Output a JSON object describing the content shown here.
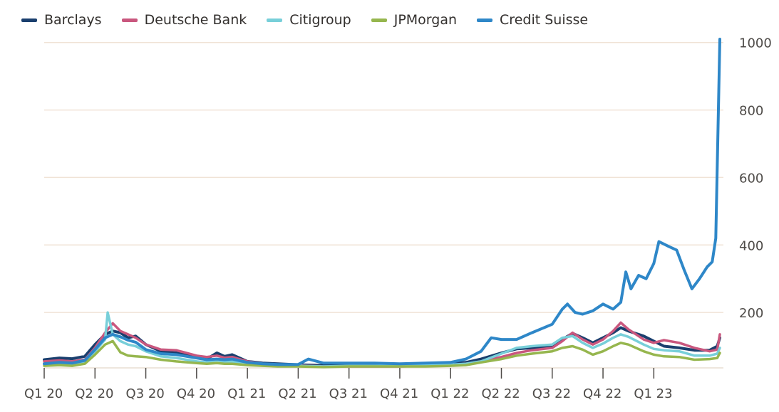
{
  "chart_data": {
    "type": "line",
    "title": "",
    "xlabel": "",
    "ylabel": "",
    "x_tick_labels": [
      "Q1 20",
      "Q2 20",
      "Q3 20",
      "Q4 20",
      "Q1 21",
      "Q2 21",
      "Q3 21",
      "Q4 21",
      "Q1 22",
      "Q2 22",
      "Q3 22",
      "Q4 22",
      "Q1 23"
    ],
    "y_ticks": [
      200,
      400,
      600,
      800,
      1000
    ],
    "ylim": [
      40,
      1010
    ],
    "xlim": [
      0,
      13.3
    ],
    "legend_position": "top-left",
    "grid": true,
    "series": [
      {
        "name": "Barclays",
        "color": "#1a3f6e",
        "points": [
          [
            0,
            60
          ],
          [
            0.3,
            65
          ],
          [
            0.55,
            63
          ],
          [
            0.8,
            70
          ],
          [
            1.0,
            105
          ],
          [
            1.2,
            135
          ],
          [
            1.35,
            145
          ],
          [
            1.5,
            140
          ],
          [
            1.65,
            125
          ],
          [
            1.8,
            130
          ],
          [
            2.0,
            105
          ],
          [
            2.3,
            85
          ],
          [
            2.6,
            80
          ],
          [
            3.0,
            68
          ],
          [
            3.2,
            62
          ],
          [
            3.4,
            80
          ],
          [
            3.55,
            70
          ],
          [
            3.7,
            75
          ],
          [
            4.0,
            55
          ],
          [
            4.3,
            50
          ],
          [
            4.6,
            48
          ],
          [
            5.0,
            45
          ],
          [
            5.5,
            43
          ],
          [
            6.0,
            45
          ],
          [
            6.5,
            45
          ],
          [
            7.0,
            43
          ],
          [
            7.5,
            45
          ],
          [
            8.0,
            48
          ],
          [
            8.3,
            52
          ],
          [
            8.6,
            62
          ],
          [
            9.0,
            80
          ],
          [
            9.3,
            92
          ],
          [
            9.6,
            95
          ],
          [
            10.0,
            100
          ],
          [
            10.2,
            120
          ],
          [
            10.4,
            138
          ],
          [
            10.6,
            125
          ],
          [
            10.8,
            110
          ],
          [
            11.0,
            125
          ],
          [
            11.2,
            140
          ],
          [
            11.35,
            155
          ],
          [
            11.5,
            145
          ],
          [
            11.8,
            130
          ],
          [
            12.0,
            115
          ],
          [
            12.2,
            100
          ],
          [
            12.5,
            95
          ],
          [
            12.8,
            88
          ],
          [
            13.1,
            88
          ],
          [
            13.25,
            100
          ],
          [
            13.3,
            125
          ]
        ]
      },
      {
        "name": "Deutsche Bank",
        "color": "#c9577e",
        "points": [
          [
            0,
            55
          ],
          [
            0.3,
            58
          ],
          [
            0.55,
            55
          ],
          [
            0.8,
            60
          ],
          [
            1.0,
            95
          ],
          [
            1.2,
            140
          ],
          [
            1.35,
            168
          ],
          [
            1.5,
            145
          ],
          [
            1.65,
            135
          ],
          [
            1.8,
            125
          ],
          [
            2.0,
            105
          ],
          [
            2.3,
            90
          ],
          [
            2.6,
            88
          ],
          [
            3.0,
            72
          ],
          [
            3.2,
            68
          ],
          [
            3.4,
            72
          ],
          [
            3.55,
            66
          ],
          [
            3.7,
            68
          ],
          [
            4.0,
            55
          ],
          [
            4.3,
            48
          ],
          [
            4.6,
            45
          ],
          [
            5.0,
            43
          ],
          [
            5.5,
            40
          ],
          [
            6.0,
            40
          ],
          [
            6.5,
            40
          ],
          [
            7.0,
            40
          ],
          [
            7.5,
            42
          ],
          [
            8.0,
            44
          ],
          [
            8.3,
            48
          ],
          [
            8.6,
            55
          ],
          [
            9.0,
            68
          ],
          [
            9.3,
            80
          ],
          [
            9.6,
            88
          ],
          [
            10.0,
            95
          ],
          [
            10.2,
            115
          ],
          [
            10.4,
            140
          ],
          [
            10.6,
            120
          ],
          [
            10.8,
            105
          ],
          [
            11.0,
            120
          ],
          [
            11.2,
            145
          ],
          [
            11.35,
            170
          ],
          [
            11.5,
            150
          ],
          [
            11.8,
            120
          ],
          [
            12.0,
            110
          ],
          [
            12.2,
            118
          ],
          [
            12.5,
            110
          ],
          [
            12.8,
            95
          ],
          [
            13.1,
            85
          ],
          [
            13.25,
            90
          ],
          [
            13.3,
            135
          ]
        ]
      },
      {
        "name": "Citigroup",
        "color": "#78cfd9",
        "points": [
          [
            0,
            45
          ],
          [
            0.3,
            48
          ],
          [
            0.55,
            46
          ],
          [
            0.8,
            55
          ],
          [
            1.0,
            85
          ],
          [
            1.2,
            120
          ],
          [
            1.25,
            200
          ],
          [
            1.35,
            135
          ],
          [
            1.5,
            115
          ],
          [
            1.65,
            105
          ],
          [
            1.8,
            100
          ],
          [
            2.0,
            85
          ],
          [
            2.3,
            70
          ],
          [
            2.6,
            65
          ],
          [
            3.0,
            55
          ],
          [
            3.2,
            52
          ],
          [
            3.4,
            58
          ],
          [
            3.55,
            54
          ],
          [
            3.7,
            55
          ],
          [
            4.0,
            48
          ],
          [
            4.3,
            44
          ],
          [
            4.6,
            42
          ],
          [
            5.0,
            42
          ],
          [
            5.5,
            40
          ],
          [
            6.0,
            42
          ],
          [
            6.5,
            42
          ],
          [
            7.0,
            42
          ],
          [
            7.5,
            44
          ],
          [
            8.0,
            45
          ],
          [
            8.3,
            48
          ],
          [
            8.6,
            55
          ],
          [
            9.0,
            78
          ],
          [
            9.3,
            95
          ],
          [
            9.6,
            100
          ],
          [
            10.0,
            105
          ],
          [
            10.2,
            125
          ],
          [
            10.4,
            130
          ],
          [
            10.6,
            110
          ],
          [
            10.8,
            95
          ],
          [
            11.0,
            108
          ],
          [
            11.2,
            125
          ],
          [
            11.35,
            135
          ],
          [
            11.5,
            128
          ],
          [
            11.8,
            105
          ],
          [
            12.0,
            92
          ],
          [
            12.2,
            88
          ],
          [
            12.5,
            85
          ],
          [
            12.8,
            72
          ],
          [
            13.1,
            72
          ],
          [
            13.25,
            78
          ],
          [
            13.3,
            95
          ]
        ]
      },
      {
        "name": "JPMorgan",
        "color": "#96b64e",
        "points": [
          [
            0,
            42
          ],
          [
            0.3,
            44
          ],
          [
            0.55,
            42
          ],
          [
            0.8,
            48
          ],
          [
            1.0,
            75
          ],
          [
            1.2,
            105
          ],
          [
            1.35,
            115
          ],
          [
            1.5,
            82
          ],
          [
            1.65,
            72
          ],
          [
            1.8,
            70
          ],
          [
            2.0,
            68
          ],
          [
            2.3,
            60
          ],
          [
            2.6,
            55
          ],
          [
            3.0,
            50
          ],
          [
            3.2,
            48
          ],
          [
            3.4,
            50
          ],
          [
            3.55,
            48
          ],
          [
            3.7,
            48
          ],
          [
            4.0,
            44
          ],
          [
            4.3,
            42
          ],
          [
            4.6,
            40
          ],
          [
            5.0,
            40
          ],
          [
            5.5,
            38
          ],
          [
            6.0,
            40
          ],
          [
            6.5,
            40
          ],
          [
            7.0,
            40
          ],
          [
            7.5,
            40
          ],
          [
            8.0,
            42
          ],
          [
            8.3,
            44
          ],
          [
            8.6,
            52
          ],
          [
            9.0,
            62
          ],
          [
            9.3,
            72
          ],
          [
            9.6,
            78
          ],
          [
            10.0,
            85
          ],
          [
            10.2,
            95
          ],
          [
            10.4,
            100
          ],
          [
            10.6,
            90
          ],
          [
            10.8,
            75
          ],
          [
            11.0,
            85
          ],
          [
            11.2,
            100
          ],
          [
            11.35,
            110
          ],
          [
            11.5,
            105
          ],
          [
            11.8,
            85
          ],
          [
            12.0,
            75
          ],
          [
            12.2,
            70
          ],
          [
            12.5,
            68
          ],
          [
            12.8,
            60
          ],
          [
            13.1,
            62
          ],
          [
            13.25,
            65
          ],
          [
            13.3,
            80
          ]
        ]
      },
      {
        "name": "Credit Suisse",
        "color": "#2e87c8",
        "points": [
          [
            0,
            48
          ],
          [
            0.3,
            52
          ],
          [
            0.55,
            50
          ],
          [
            0.8,
            58
          ],
          [
            1.0,
            90
          ],
          [
            1.2,
            125
          ],
          [
            1.35,
            135
          ],
          [
            1.5,
            128
          ],
          [
            1.65,
            118
          ],
          [
            1.8,
            112
          ],
          [
            2.0,
            90
          ],
          [
            2.3,
            78
          ],
          [
            2.6,
            75
          ],
          [
            3.0,
            65
          ],
          [
            3.2,
            60
          ],
          [
            3.4,
            62
          ],
          [
            3.55,
            60
          ],
          [
            3.7,
            62
          ],
          [
            4.0,
            52
          ],
          [
            4.3,
            48
          ],
          [
            4.6,
            46
          ],
          [
            5.0,
            46
          ],
          [
            5.2,
            62
          ],
          [
            5.5,
            50
          ],
          [
            6.0,
            50
          ],
          [
            6.5,
            50
          ],
          [
            7.0,
            48
          ],
          [
            7.5,
            50
          ],
          [
            8.0,
            52
          ],
          [
            8.3,
            62
          ],
          [
            8.6,
            85
          ],
          [
            8.8,
            125
          ],
          [
            9.0,
            120
          ],
          [
            9.3,
            120
          ],
          [
            9.6,
            140
          ],
          [
            10.0,
            165
          ],
          [
            10.2,
            210
          ],
          [
            10.3,
            225
          ],
          [
            10.45,
            200
          ],
          [
            10.6,
            195
          ],
          [
            10.8,
            205
          ],
          [
            11.0,
            225
          ],
          [
            11.2,
            210
          ],
          [
            11.35,
            230
          ],
          [
            11.45,
            320
          ],
          [
            11.55,
            270
          ],
          [
            11.7,
            310
          ],
          [
            11.85,
            300
          ],
          [
            12.0,
            345
          ],
          [
            12.1,
            410
          ],
          [
            12.3,
            395
          ],
          [
            12.45,
            385
          ],
          [
            12.6,
            325
          ],
          [
            12.75,
            270
          ],
          [
            12.9,
            300
          ],
          [
            13.05,
            335
          ],
          [
            13.15,
            350
          ],
          [
            13.22,
            420
          ],
          [
            13.3,
            1010
          ]
        ]
      }
    ]
  }
}
